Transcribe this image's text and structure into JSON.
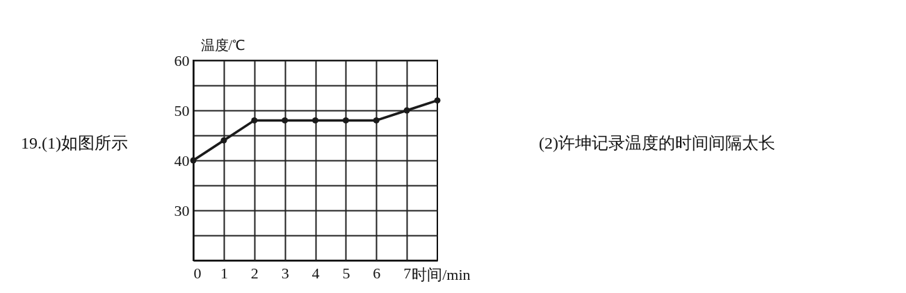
{
  "chart_data": {
    "type": "line",
    "xlabel": "时间/min",
    "ylabel": "温度/℃",
    "x": [
      0,
      1,
      2,
      3,
      4,
      5,
      6,
      7,
      8
    ],
    "series": [
      {
        "color": "#1a1a1a",
        "values": [
          40,
          44,
          48,
          48,
          48,
          48,
          48,
          50,
          52
        ]
      }
    ],
    "xlim": [
      0,
      8
    ],
    "ylim": [
      20,
      60
    ],
    "xticks": [
      0,
      1,
      2,
      3,
      4,
      5,
      6,
      7
    ],
    "yticks": [
      {
        "value": 20,
        "label": null
      },
      {
        "value": 25,
        "label": null
      },
      30,
      {
        "value": 35,
        "label": null
      },
      40,
      {
        "value": 45,
        "label": null
      },
      50,
      {
        "value": 55,
        "label": null
      },
      60
    ],
    "grid": true,
    "marker": "circle",
    "annotations": [
      "19.(1)如图所示",
      "(2)许坤记录温度的时间间隔太长"
    ]
  }
}
